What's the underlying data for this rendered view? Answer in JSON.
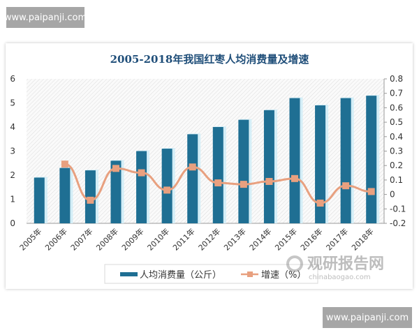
{
  "watermarks": {
    "top_left": "www.paipanji.com",
    "bottom_right": "www.paipanji.com",
    "logo_cn": "观研报告网",
    "logo_en": "chinabaogao.com"
  },
  "chart_data": {
    "type": "bar+line",
    "title": "2005-2018年我国红枣人均消费量及增速",
    "categories": [
      "2005年",
      "2006年",
      "2007年",
      "2008年",
      "2009年",
      "2010年",
      "2011年",
      "2012年",
      "2013年",
      "2014年",
      "2015年",
      "2016年",
      "2017年",
      "2018年"
    ],
    "series": [
      {
        "name": "人均消费量（公斤）",
        "type": "bar",
        "axis": "left",
        "color": "#1f6f93",
        "values": [
          1.9,
          2.3,
          2.2,
          2.6,
          3.0,
          3.1,
          3.7,
          4.0,
          4.3,
          4.7,
          5.2,
          4.9,
          5.2,
          5.3
        ]
      },
      {
        "name": "增速（%）",
        "type": "line",
        "axis": "right",
        "color": "#e8a07f",
        "values": [
          null,
          0.21,
          -0.04,
          0.18,
          0.15,
          0.03,
          0.19,
          0.08,
          0.07,
          0.09,
          0.11,
          -0.06,
          0.06,
          0.02
        ]
      }
    ],
    "y_left": {
      "range": [
        0,
        6
      ],
      "ticks": [
        "0",
        "1",
        "2",
        "3",
        "4",
        "5",
        "6"
      ]
    },
    "y_right": {
      "range": [
        -0.2,
        0.8
      ],
      "ticks": [
        "-0.2",
        "-0.1",
        "0",
        "0.1",
        "0.2",
        "0.3",
        "0.4",
        "0.5",
        "0.6",
        "0.7",
        "0.8"
      ]
    },
    "legend_position": "bottom",
    "grid": false,
    "title_color": "#1f4e79"
  }
}
